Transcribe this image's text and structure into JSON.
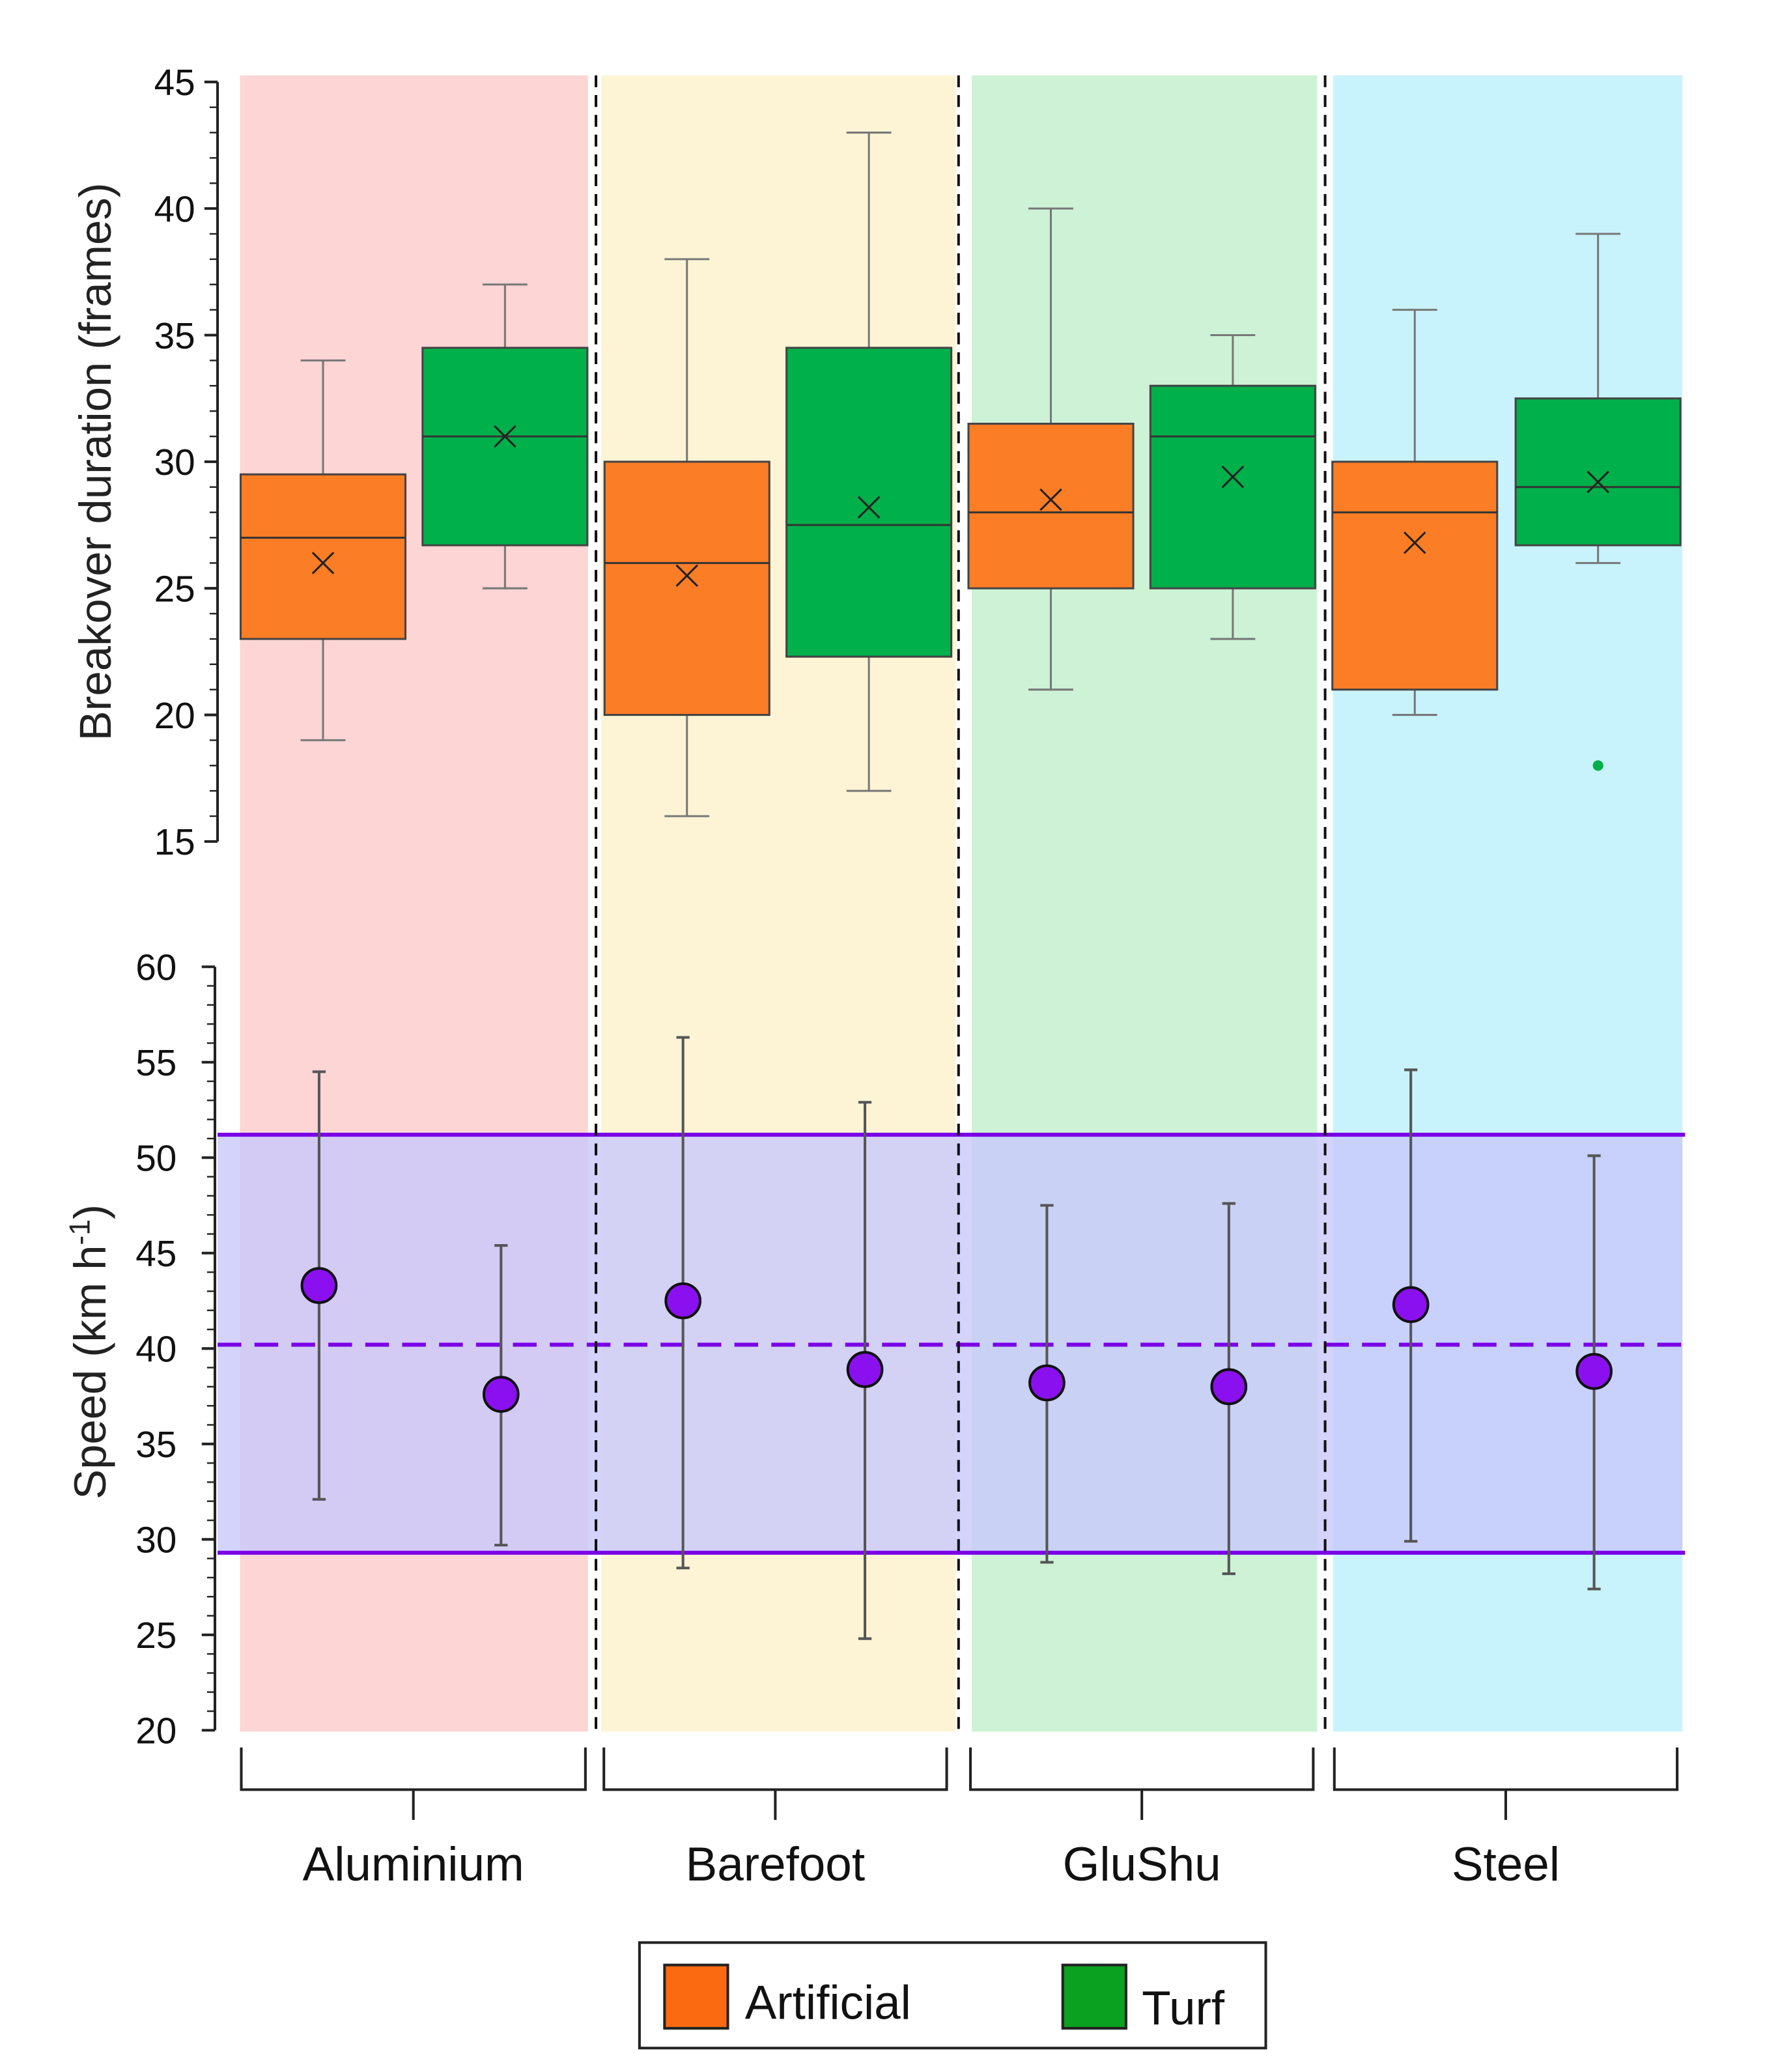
{
  "chart_data": [
    {
      "type": "box",
      "ylabel": "Breakover duration (frames)",
      "ylim": [
        15,
        45
      ],
      "yticks": [
        15,
        20,
        25,
        30,
        35,
        40,
        45
      ],
      "categories": [
        "Aluminium",
        "Barefoot",
        "GluShu",
        "Steel"
      ],
      "series": [
        {
          "name": "Artificial",
          "color": "#fb7d25",
          "boxes": [
            {
              "min": 19,
              "q1": 23,
              "median": 27,
              "q3": 29.5,
              "max": 34,
              "mean": 26
            },
            {
              "min": 16,
              "q1": 20,
              "median": 26,
              "q3": 30,
              "max": 38,
              "mean": 25.5
            },
            {
              "min": 21,
              "q1": 25,
              "median": 28,
              "q3": 31.5,
              "max": 40,
              "mean": 28.5
            },
            {
              "min": 20,
              "q1": 21,
              "median": 28,
              "q3": 30,
              "max": 36,
              "mean": 26.8
            }
          ]
        },
        {
          "name": "Turf",
          "color": "#00b04a",
          "boxes": [
            {
              "min": 25,
              "q1": 26.7,
              "median": 31,
              "q3": 34.5,
              "max": 37,
              "mean": 31
            },
            {
              "min": 17,
              "q1": 22.3,
              "median": 27.5,
              "q3": 34.5,
              "max": 43,
              "mean": 28.2
            },
            {
              "min": 23,
              "q1": 25,
              "median": 31,
              "q3": 33,
              "max": 35,
              "mean": 29.4
            },
            {
              "min": 26,
              "q1": 26.7,
              "median": 29,
              "q3": 32.5,
              "max": 39,
              "mean": 29.2,
              "outliers": [
                18
              ]
            }
          ]
        }
      ]
    },
    {
      "type": "scatter",
      "ylabel": "Speed (km h",
      "ylabel_sup": "-1",
      "ylabel_end": ")",
      "ylim": [
        20,
        60
      ],
      "yticks": [
        20,
        25,
        30,
        35,
        40,
        45,
        50,
        55,
        60
      ],
      "band": {
        "lower": 29.3,
        "mean": 40.2,
        "upper": 51.2,
        "color": "#7a00e6"
      },
      "points": [
        {
          "category": "Aluminium",
          "series": "Artificial",
          "mean": 43.3,
          "low": 32.1,
          "high": 54.5
        },
        {
          "category": "Aluminium",
          "series": "Turf",
          "mean": 37.6,
          "low": 29.7,
          "high": 45.4
        },
        {
          "category": "Barefoot",
          "series": "Artificial",
          "mean": 42.5,
          "low": 28.5,
          "high": 56.3
        },
        {
          "category": "Barefoot",
          "series": "Turf",
          "mean": 38.9,
          "low": 24.8,
          "high": 52.9
        },
        {
          "category": "GluShu",
          "series": "Artificial",
          "mean": 38.2,
          "low": 28.8,
          "high": 47.5
        },
        {
          "category": "GluShu",
          "series": "Turf",
          "mean": 38.0,
          "low": 28.2,
          "high": 47.6
        },
        {
          "category": "Steel",
          "series": "Artificial",
          "mean": 42.3,
          "low": 29.9,
          "high": 54.6
        },
        {
          "category": "Steel",
          "series": "Turf",
          "mean": 38.8,
          "low": 27.4,
          "high": 50.1
        }
      ]
    }
  ],
  "panel_colors": [
    "#fdd5d5",
    "#fdf4d5",
    "#cdf2d6",
    "#c8f3fc"
  ],
  "legend": [
    {
      "label": "Artificial",
      "color": "#fb6a10"
    },
    {
      "label": "Turf",
      "color": "#0aa020"
    }
  ]
}
